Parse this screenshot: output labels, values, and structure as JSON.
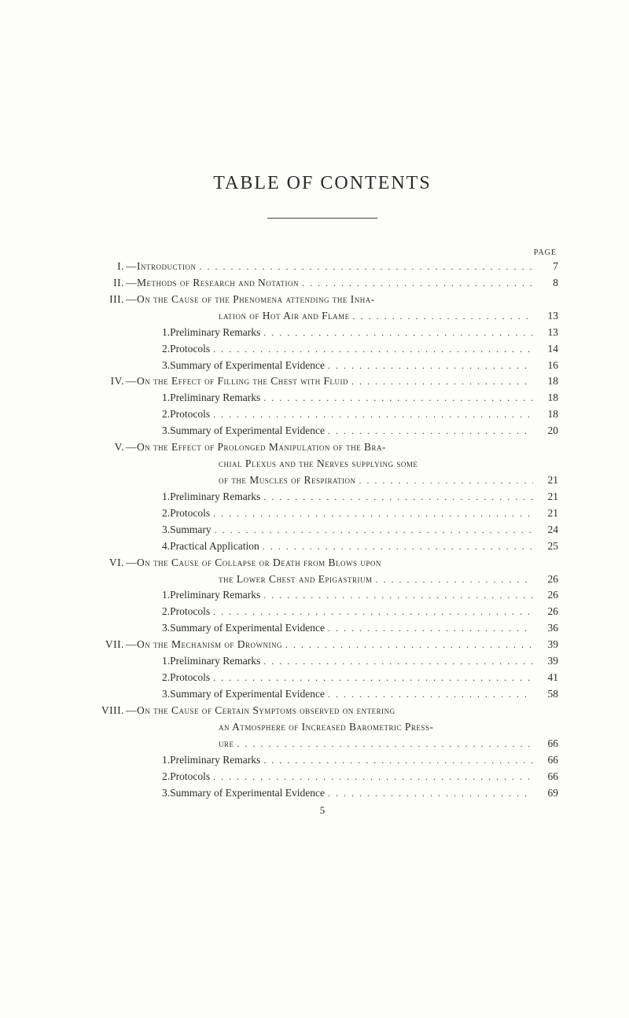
{
  "title": "TABLE OF CONTENTS",
  "page_label": "PAGE",
  "footer_page": "5",
  "entries": [
    {
      "type": "section",
      "roman": "I.",
      "head": "—Introduction",
      "pg": "7"
    },
    {
      "type": "section",
      "roman": "II.",
      "head": "—Methods of Research and Notation",
      "pg": "8"
    },
    {
      "type": "section",
      "roman": "III.",
      "head": "—On the Cause of the Phenomena attending the Inha-",
      "pg": ""
    },
    {
      "type": "cont",
      "text": "lation of Hot Air and Flame",
      "pg": "13",
      "sc": true
    },
    {
      "type": "sub",
      "num": "1.",
      "text": "Preliminary Remarks",
      "pg": "13"
    },
    {
      "type": "sub",
      "num": "2.",
      "text": "Protocols",
      "pg": "14"
    },
    {
      "type": "sub",
      "num": "3.",
      "text": "Summary of Experimental Evidence",
      "pg": "16"
    },
    {
      "type": "section",
      "roman": "IV.",
      "head": "—On the Effect of Filling the Chest with Fluid",
      "pg": "18"
    },
    {
      "type": "sub",
      "num": "1.",
      "text": "Preliminary Remarks",
      "pg": "18"
    },
    {
      "type": "sub",
      "num": "2.",
      "text": "Protocols",
      "pg": "18"
    },
    {
      "type": "sub",
      "num": "3.",
      "text": "Summary of Experimental Evidence",
      "pg": "20"
    },
    {
      "type": "section",
      "roman": "V.",
      "head": "—On the Effect of Prolonged Manipulation of the Bra-",
      "pg": ""
    },
    {
      "type": "cont",
      "text": "chial Plexus and the Nerves supplying some",
      "pg": "",
      "sc": true
    },
    {
      "type": "cont",
      "text": "of the Muscles of Respiration",
      "pg": "21",
      "sc": true
    },
    {
      "type": "sub",
      "num": "1.",
      "text": "Preliminary Remarks",
      "pg": "21"
    },
    {
      "type": "sub",
      "num": "2.",
      "text": "Protocols",
      "pg": "21"
    },
    {
      "type": "sub",
      "num": "3.",
      "text": "Summary",
      "pg": "24"
    },
    {
      "type": "sub",
      "num": "4.",
      "text": "Practical Application",
      "pg": "25"
    },
    {
      "type": "section",
      "roman": "VI.",
      "head": "—On the Cause of Collapse or Death from Blows upon",
      "pg": ""
    },
    {
      "type": "cont",
      "text": "the Lower Chest and Epigastrium",
      "pg": "26",
      "sc": true
    },
    {
      "type": "sub",
      "num": "1.",
      "text": "Preliminary Remarks",
      "pg": "26"
    },
    {
      "type": "sub",
      "num": "2.",
      "text": "Protocols",
      "pg": "26"
    },
    {
      "type": "sub",
      "num": "3.",
      "text": "Summary of Experimental Evidence",
      "pg": "36"
    },
    {
      "type": "section",
      "roman": "VII.",
      "head": "—On the Mechanism of Drowning",
      "pg": "39"
    },
    {
      "type": "sub",
      "num": "1.",
      "text": "Preliminary Remarks",
      "pg": "39"
    },
    {
      "type": "sub",
      "num": "2.",
      "text": "Protocols",
      "pg": "41"
    },
    {
      "type": "sub",
      "num": "3.",
      "text": "Summary of Experimental Evidence",
      "pg": "58"
    },
    {
      "type": "section",
      "roman": "VIII.",
      "head": "—On the Cause of Certain Symptoms observed on entering",
      "pg": ""
    },
    {
      "type": "cont",
      "text": "an Atmosphere of Increased Barometric Press-",
      "pg": "",
      "sc": true
    },
    {
      "type": "cont",
      "text": "ure",
      "pg": "66",
      "sc": true
    },
    {
      "type": "sub",
      "num": "1.",
      "text": "Preliminary Remarks",
      "pg": "66"
    },
    {
      "type": "sub",
      "num": "2.",
      "text": "Protocols",
      "pg": "66"
    },
    {
      "type": "sub",
      "num": "3.",
      "text": "Summary of Experimental Evidence",
      "pg": "69"
    }
  ]
}
